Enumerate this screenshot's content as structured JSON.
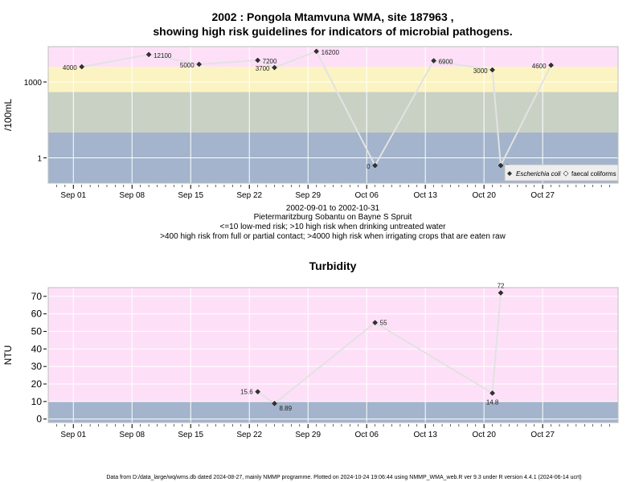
{
  "page": {
    "footer": "Data from D:/data_large/wq/wms.db dated 2024-08-27, mainly NMMP programme. Plotted on 2024-10-24 19:06:44 using NMMP_WMA_web.R ver 9.3 under R version 4.4.1 (2024-06-14 ucrt)"
  },
  "chart_data": [
    {
      "type": "scatter",
      "title": "2002 : Pongola Mtamvuna WMA, site 187963 ,",
      "subtitle": "showing high risk guidelines for indicators of microbial pathogens.",
      "ylabel": "/100mL",
      "y_scale": "log10",
      "y_ticks": [
        1,
        1000
      ],
      "x_ticks": [
        "Sep 01",
        "Sep 08",
        "Sep 15",
        "Sep 22",
        "Sep 29",
        "Oct 06",
        "Oct 13",
        "Oct 20",
        "Oct 27"
      ],
      "x_tick_dates": [
        "2002-09-01",
        "2002-09-08",
        "2002-09-15",
        "2002-09-22",
        "2002-09-29",
        "2002-10-06",
        "2002-10-13",
        "2002-10-20",
        "2002-10-27"
      ],
      "xlim": [
        "2002-08-29",
        "2002-11-05"
      ],
      "grid": true,
      "legend_position": "bottom-right",
      "legend": [
        {
          "label": "Escherichia coli",
          "italic": true
        },
        {
          "label": "faecal coliforms",
          "italic": false
        }
      ],
      "bands": [
        {
          "from": 0.1,
          "to": 10,
          "color": "#a3b4cc"
        },
        {
          "from": 10,
          "to": 400,
          "color": "#c9d1c4"
        },
        {
          "from": 400,
          "to": 4000,
          "color": "#fbf4c2"
        },
        {
          "from": 4000,
          "to": 25000,
          "color": "#fde0f7"
        }
      ],
      "series": [
        {
          "name": "Escherichia coli",
          "points": [
            {
              "date": "2002-09-02",
              "value": 4000,
              "label": "4000"
            },
            {
              "date": "2002-09-10",
              "value": 12100,
              "label": "12100"
            },
            {
              "date": "2002-09-16",
              "value": 5000,
              "label": "5000"
            },
            {
              "date": "2002-09-23",
              "value": 7200,
              "label": "7200"
            },
            {
              "date": "2002-09-25",
              "value": 3700,
              "label": "3700"
            },
            {
              "date": "2002-09-30",
              "value": 16200,
              "label": "16200"
            },
            {
              "date": "2002-10-07",
              "value": 0,
              "label": "0"
            },
            {
              "date": "2002-10-14",
              "value": 6900,
              "label": "6900"
            },
            {
              "date": "2002-10-21",
              "value": 3000,
              "label": "3000"
            },
            {
              "date": "2002-10-22",
              "value": 0,
              "label": "0"
            },
            {
              "date": "2002-10-28",
              "value": 4600,
              "label": "4600"
            }
          ]
        }
      ],
      "notes": [
        "2002-09-01 to 2002-10-31",
        "Pietermaritzburg Sobantu on Bayne S Spruit",
        "<=10 low-med risk; >10 high risk when drinking untreated water",
        ">400 high risk from full or partial contact; >4000 high risk when irrigating crops that are eaten raw"
      ]
    },
    {
      "type": "scatter",
      "title": "Turbidity",
      "ylabel": "NTU",
      "ylim": [
        -2,
        75
      ],
      "y_ticks": [
        0,
        10,
        20,
        30,
        40,
        50,
        60,
        70
      ],
      "x_ticks": [
        "Sep 01",
        "Sep 08",
        "Sep 15",
        "Sep 22",
        "Sep 29",
        "Oct 06",
        "Oct 13",
        "Oct 20",
        "Oct 27"
      ],
      "x_tick_dates": [
        "2002-09-01",
        "2002-09-08",
        "2002-09-15",
        "2002-09-22",
        "2002-09-29",
        "2002-10-06",
        "2002-10-13",
        "2002-10-20",
        "2002-10-27"
      ],
      "xlim": [
        "2002-08-29",
        "2002-11-05"
      ],
      "grid": true,
      "bands": [
        {
          "from": -2,
          "to": 10,
          "color": "#a3b4cc"
        },
        {
          "from": 10,
          "to": 75,
          "color": "#fde0f7"
        }
      ],
      "series": [
        {
          "points": [
            {
              "date": "2002-09-23",
              "value": 15.6,
              "label": "15.6",
              "label_side": "left"
            },
            {
              "date": "2002-09-25",
              "value": 8.89,
              "label": "8.89",
              "label_side": "below-right"
            },
            {
              "date": "2002-10-07",
              "value": 55,
              "label": "55",
              "label_side": "right"
            },
            {
              "date": "2002-10-21",
              "value": 14.8,
              "label": "14.8",
              "label_side": "below"
            },
            {
              "date": "2002-10-22",
              "value": 72,
              "label": "72",
              "label_side": "above"
            }
          ]
        }
      ]
    }
  ]
}
